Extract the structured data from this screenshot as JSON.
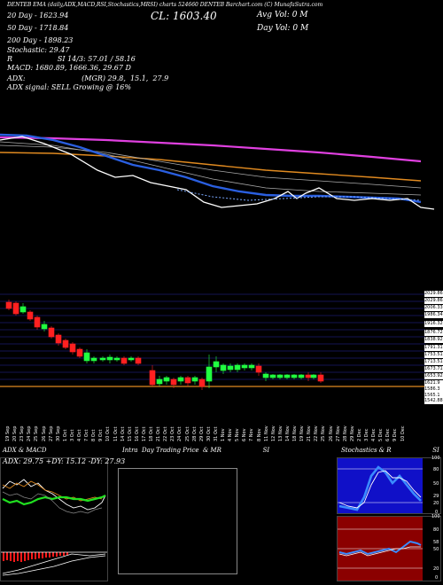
{
  "header": {
    "top_line": "DENTEB EMA (daily,ADX,MACD,RSI,Stochastics,MRSI) charts 524660 DENTEB  Barchart.com (C) MunafaSutra.com",
    "close_label": "CL: 1603.40",
    "avg_vol": "Avg Vol: 0  M",
    "day_vol": "Day Vol: 0  M"
  },
  "indicators": {
    "ema20": "20  Day - 1623.94",
    "ema50": "50  Day - 1718.84",
    "ema200": "200  Day - 1898.23",
    "stoch": "Stochastic: 29.47",
    "rsi": "R                    SI 14/3: 57.01 / 58.16",
    "macd": "MACD: 1680.89,  1666.36,  29.67 D",
    "adx": "ADX:                         (MGR) 29.8,  15.1,  27.9",
    "adx_signal": "ADX  signal: SELL Growing @ 16%"
  },
  "price_axis": [
    "2029.86",
    "2029.86",
    "2006.33",
    "1986.34",
    "1916.32",
    "1876.72",
    "1838.92",
    "1791.31",
    "1753.51",
    "1713.51",
    "1673.71",
    "1653.92",
    "1621.9",
    "1586.3",
    "1565.1",
    "1542.88"
  ],
  "dates": [
    "19 Sep",
    "20 Sep",
    "23 Sep",
    "24 Sep",
    "25 Sep",
    "26 Sep",
    "27 Sep",
    "30 Sep",
    "1 Oct",
    "3 Oct",
    "4 Oct",
    "7 Oct",
    "8 Oct",
    "9 Oct",
    "10 Oct",
    "11 Oct",
    "14 Oct",
    "15 Oct",
    "16 Oct",
    "17 Oct",
    "18 Oct",
    "21 Oct",
    "22 Oct",
    "23 Oct",
    "24 Oct",
    "25 Oct",
    "28 Oct",
    "29 Oct",
    "30 Oct",
    "31 Oct",
    "1 Nov",
    "4 Nov",
    "5 Nov",
    "6 Nov",
    "7 Nov",
    "8 Nov",
    "11 Nov",
    "12 Nov",
    "13 Nov",
    "14 Nov",
    "18 Nov",
    "19 Nov",
    "21 Nov",
    "22 Nov",
    "25 Nov",
    "26 Nov",
    "27 Nov",
    "28 Nov",
    "29 Nov",
    "2 Dec",
    "3 Dec",
    "4 Dec",
    "5 Dec",
    "6 Dec",
    "9 Dec",
    "10 Dec"
  ],
  "panels": {
    "adx_title": "ADX  & MACD",
    "adx_values": "ADX: 29.75  +DY: 15.12  -DY: 27.93",
    "intraday_title": "Intra  Day Trading Price  & MR                     SI",
    "stoch_title": "Stochastics & R                     SI",
    "stoch_ticks": [
      "100",
      "80",
      "50",
      "20",
      "0"
    ],
    "stoch_value": "29",
    "rsi_ticks": [
      "100",
      "80",
      "50",
      "20",
      "0"
    ],
    "rsi_value": "58",
    "stoch_bg": "#1010c8",
    "rsi_bg": "#8b0000"
  },
  "chart_data": [
    {
      "type": "line",
      "series": [
        {
          "name": "20  Day - 1623.94",
          "values": [
            1985,
            1972,
            1955,
            1940,
            1925,
            1905,
            1880,
            1850,
            1825,
            1810,
            1795,
            1775,
            1755,
            1735,
            1715,
            1700,
            1690,
            1682,
            1676,
            1672,
            1670,
            1668,
            1665,
            1662,
            1660,
            1660,
            1662,
            1664,
            1665,
            1664,
            1662,
            1660,
            1657,
            1655,
            1652,
            1650,
            1648,
            1646,
            1645,
            1642,
            1640,
            1638,
            1636,
            1634,
            1632,
            1630,
            1628,
            1626,
            1625,
            1624,
            1623.94
          ]
        },
        {
          "name": "50  Day - 1718.84",
          "values": [
            2005,
            2000,
            1995,
            1988,
            1982,
            1975,
            1968,
            1960,
            1952,
            1944,
            1936,
            1928,
            1920,
            1910,
            1900,
            1890,
            1880,
            1870,
            1860,
            1850,
            1840,
            1832,
            1825,
            1818,
            1812,
            1806,
            1800,
            1795,
            1790,
            1786,
            1782,
            1778,
            1774,
            1770,
            1766,
            1762,
            1758,
            1754,
            1750,
            1746,
            1742,
            1738,
            1735,
            1732,
            1729,
            1726,
            1724,
            1722,
            1720,
            1719,
            1718.84
          ]
        },
        {
          "name": "200  Day - 1898.23",
          "values": [
            2012,
            2011,
            2010,
            2009,
            2008,
            2007,
            2006,
            2005,
            2003,
            2001,
            1999,
            1997,
            1995,
            1993,
            1990,
            1987,
            1984,
            1981,
            1978,
            1975,
            1972,
            1969,
            1966,
            1963,
            1960,
            1957,
            1954,
            1951,
            1948,
            1945,
            1942,
            1939,
            1936,
            1933,
            1930,
            1927,
            1924,
            1921,
            1918,
            1915,
            1912,
            1910,
            1908,
            1906,
            1904,
            1902,
            1901,
            1900,
            1899,
            1898.5,
            1898.23
          ]
        }
      ]
    }
  ]
}
